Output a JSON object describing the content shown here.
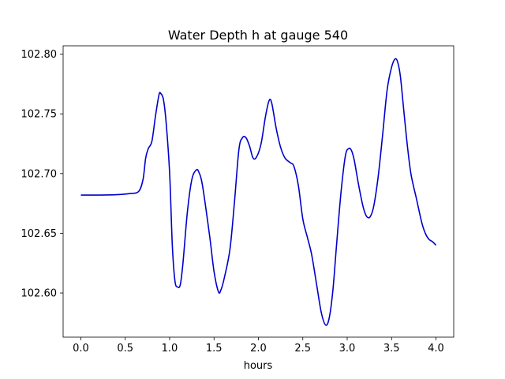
{
  "chart_data": {
    "type": "line",
    "title": "Water Depth h at gauge 540",
    "xlabel": "hours",
    "ylabel": "",
    "xlim": [
      -0.2,
      4.2
    ],
    "ylim": [
      102.563,
      102.807
    ],
    "xticks": [
      0.0,
      0.5,
      1.0,
      1.5,
      2.0,
      2.5,
      3.0,
      3.5,
      4.0
    ],
    "xtick_labels": [
      "0.0",
      "0.5",
      "1.0",
      "1.5",
      "2.0",
      "2.5",
      "3.0",
      "3.5",
      "4.0"
    ],
    "yticks": [
      102.6,
      102.65,
      102.7,
      102.75,
      102.8
    ],
    "ytick_labels": [
      "102.60",
      "102.65",
      "102.70",
      "102.75",
      "102.80"
    ],
    "grid": false,
    "line_color": "#0000cc",
    "series": [
      {
        "x": [
          0.0,
          0.2,
          0.4,
          0.55,
          0.65,
          0.7,
          0.73,
          0.76,
          0.8,
          0.84,
          0.88,
          0.9,
          0.93,
          0.96,
          1.0,
          1.03,
          1.06,
          1.09,
          1.12,
          1.15,
          1.2,
          1.25,
          1.3,
          1.33,
          1.37,
          1.45,
          1.5,
          1.55,
          1.58,
          1.62,
          1.68,
          1.73,
          1.78,
          1.82,
          1.86,
          1.9,
          1.94,
          1.98,
          2.03,
          2.08,
          2.12,
          2.15,
          2.2,
          2.25,
          2.3,
          2.36,
          2.4,
          2.45,
          2.5,
          2.55,
          2.6,
          2.66,
          2.71,
          2.76,
          2.8,
          2.84,
          2.88,
          2.93,
          2.98,
          3.02,
          3.05,
          3.08,
          3.13,
          3.18,
          3.22,
          3.26,
          3.3,
          3.35,
          3.4,
          3.45,
          3.5,
          3.54,
          3.57,
          3.6,
          3.64,
          3.68,
          3.72,
          3.78,
          3.84,
          3.88,
          3.92,
          3.96,
          4.0
        ],
        "y": [
          102.682,
          102.682,
          102.6823,
          102.6832,
          102.685,
          102.695,
          102.713,
          102.721,
          102.727,
          102.748,
          102.766,
          102.767,
          102.762,
          102.743,
          102.7,
          102.64,
          102.61,
          102.605,
          102.607,
          102.625,
          102.668,
          102.695,
          102.703,
          102.701,
          102.69,
          102.648,
          102.618,
          102.601,
          102.603,
          102.614,
          102.637,
          102.676,
          102.72,
          102.73,
          102.73,
          102.723,
          102.713,
          102.714,
          102.725,
          102.748,
          102.761,
          102.759,
          102.738,
          102.722,
          102.713,
          102.709,
          102.706,
          102.69,
          102.662,
          102.647,
          102.632,
          102.605,
          102.583,
          102.573,
          102.58,
          102.603,
          102.64,
          102.684,
          102.715,
          102.721,
          102.719,
          102.711,
          102.69,
          102.672,
          102.664,
          102.664,
          102.673,
          102.698,
          102.733,
          102.77,
          102.789,
          102.796,
          102.793,
          102.781,
          102.751,
          102.722,
          102.699,
          102.679,
          102.659,
          102.65,
          102.645,
          102.643,
          102.64
        ]
      }
    ]
  }
}
